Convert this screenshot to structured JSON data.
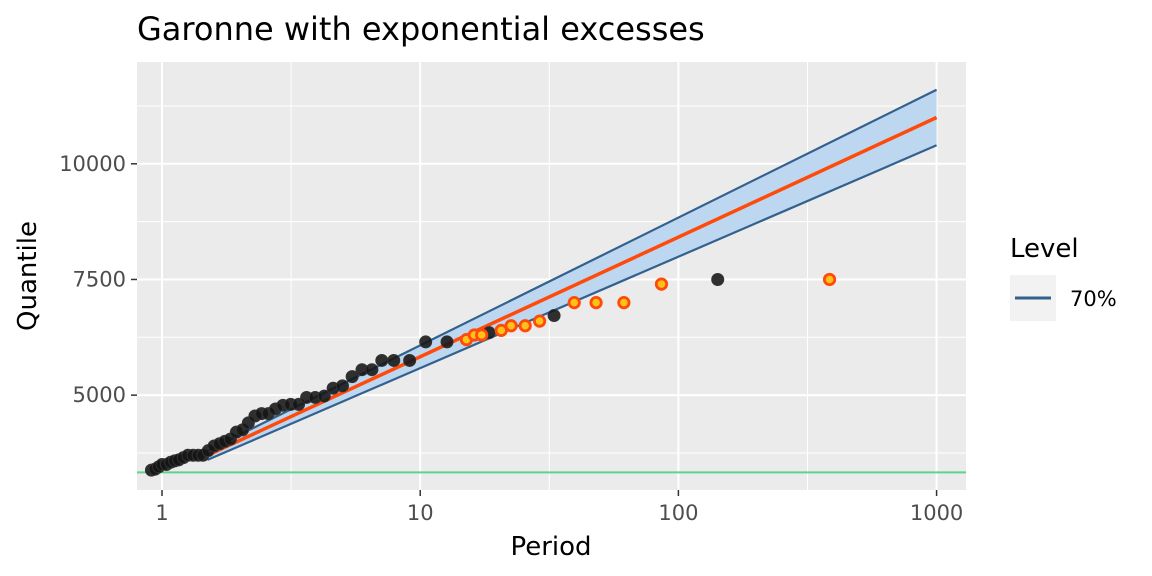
{
  "chart_data": {
    "type": "scatter",
    "title": "Garonne with exponential excesses",
    "xlabel": "Period",
    "ylabel": "Quantile",
    "x_scale": "log10",
    "xlim": [
      0.8,
      1300
    ],
    "ylim": [
      2950,
      12200
    ],
    "x_ticks": [
      1,
      10,
      100,
      1000
    ],
    "x_tick_labels": [
      "1",
      "10",
      "100",
      "1000"
    ],
    "y_ticks": [
      5000,
      7500,
      10000
    ],
    "y_tick_labels": [
      "5000",
      "7500",
      "10000"
    ],
    "grid": true,
    "legend": {
      "title": "Level",
      "position": "right",
      "entries": [
        {
          "label": "70%",
          "color": "#34608e"
        }
      ]
    },
    "threshold_line": {
      "y": 3330,
      "color": "#5ad58a"
    },
    "return_level_line": {
      "color": "#ff4a0a",
      "points": [
        {
          "x": 1.5,
          "y": 3700
        },
        {
          "x": 1000,
          "y": 11000
        }
      ]
    },
    "confidence_band": {
      "level": "70%",
      "fill": "#bcd7ef",
      "line_color": "#34608e",
      "lower": [
        {
          "x": 1.5,
          "y": 3600
        },
        {
          "x": 1000,
          "y": 10400
        }
      ],
      "upper": [
        {
          "x": 1.5,
          "y": 3800
        },
        {
          "x": 1000,
          "y": 11600
        }
      ]
    },
    "series": [
      {
        "style": "black",
        "color": "#141414",
        "points": [
          {
            "x": 0.91,
            "y": 3380
          },
          {
            "x": 0.94,
            "y": 3400
          },
          {
            "x": 0.97,
            "y": 3450
          },
          {
            "x": 1.0,
            "y": 3500
          },
          {
            "x": 1.04,
            "y": 3500
          },
          {
            "x": 1.08,
            "y": 3550
          },
          {
            "x": 1.12,
            "y": 3580
          },
          {
            "x": 1.16,
            "y": 3600
          },
          {
            "x": 1.21,
            "y": 3650
          },
          {
            "x": 1.26,
            "y": 3700
          },
          {
            "x": 1.32,
            "y": 3700
          },
          {
            "x": 1.38,
            "y": 3700
          },
          {
            "x": 1.44,
            "y": 3700
          },
          {
            "x": 1.51,
            "y": 3800
          },
          {
            "x": 1.59,
            "y": 3900
          },
          {
            "x": 1.67,
            "y": 3950
          },
          {
            "x": 1.75,
            "y": 4000
          },
          {
            "x": 1.84,
            "y": 4050
          },
          {
            "x": 1.94,
            "y": 4200
          },
          {
            "x": 2.05,
            "y": 4250
          },
          {
            "x": 2.16,
            "y": 4400
          },
          {
            "x": 2.29,
            "y": 4550
          },
          {
            "x": 2.43,
            "y": 4600
          },
          {
            "x": 2.58,
            "y": 4600
          },
          {
            "x": 2.75,
            "y": 4700
          },
          {
            "x": 2.94,
            "y": 4780
          },
          {
            "x": 3.15,
            "y": 4800
          },
          {
            "x": 3.38,
            "y": 4800
          },
          {
            "x": 3.63,
            "y": 4950
          },
          {
            "x": 3.92,
            "y": 4950
          },
          {
            "x": 4.25,
            "y": 4980
          },
          {
            "x": 4.6,
            "y": 5150
          },
          {
            "x": 5.0,
            "y": 5200
          },
          {
            "x": 5.45,
            "y": 5400
          },
          {
            "x": 5.95,
            "y": 5550
          },
          {
            "x": 6.5,
            "y": 5550
          },
          {
            "x": 7.1,
            "y": 5750
          },
          {
            "x": 7.9,
            "y": 5750
          },
          {
            "x": 9.1,
            "y": 5750
          },
          {
            "x": 10.5,
            "y": 6150
          },
          {
            "x": 12.7,
            "y": 6150
          },
          {
            "x": 18.5,
            "y": 6350
          },
          {
            "x": 33,
            "y": 6720
          },
          {
            "x": 142,
            "y": 7500
          }
        ]
      },
      {
        "style": "orange-outlined",
        "color": "#ffc21a",
        "outline": "#ff4a0a",
        "points": [
          {
            "x": 15.1,
            "y": 6200
          },
          {
            "x": 16.2,
            "y": 6300
          },
          {
            "x": 17.3,
            "y": 6300
          },
          {
            "x": 20.6,
            "y": 6400
          },
          {
            "x": 22.5,
            "y": 6500
          },
          {
            "x": 25.5,
            "y": 6500
          },
          {
            "x": 29,
            "y": 6600
          },
          {
            "x": 39.5,
            "y": 7000
          },
          {
            "x": 48,
            "y": 7000
          },
          {
            "x": 61.5,
            "y": 7000
          },
          {
            "x": 86,
            "y": 7400
          },
          {
            "x": 385,
            "y": 7500
          }
        ]
      }
    ]
  }
}
